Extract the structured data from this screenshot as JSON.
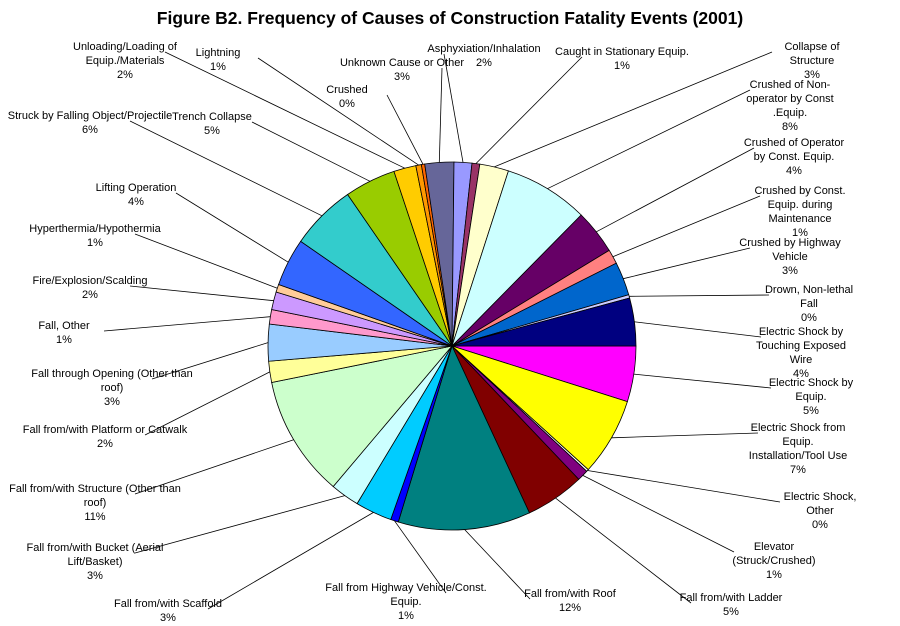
{
  "chart_data": {
    "type": "pie",
    "title": "Figure B2.  Frequency of Causes of Construction Fatality Events (2001)",
    "start_angle_deg": 0,
    "direction": "clockwise",
    "slices": [
      {
        "label": "Electric Shock by Equip.",
        "pct_label": "5%",
        "value": 5.0,
        "color": "#FF00FF"
      },
      {
        "label": "Electric Shock from Equip. Installation/Tool Use",
        "pct_label": "7%",
        "value": 7.0,
        "color": "#FFFF00"
      },
      {
        "label": "Electric Shock, Other",
        "pct_label": "0%",
        "value": 0.2,
        "color": "#FFFFFF"
      },
      {
        "label": "Elevator (Struck/Crushed)",
        "pct_label": "1%",
        "value": 1.0,
        "color": "#800080"
      },
      {
        "label": "Fall from/with Ladder",
        "pct_label": "5%",
        "value": 5.3,
        "color": "#800000"
      },
      {
        "label": "Fall from/with Roof",
        "pct_label": "12%",
        "value": 11.9,
        "color": "#008080"
      },
      {
        "label": "Fall from Highway Vehicle/Const. Equip.",
        "pct_label": "1%",
        "value": 0.7,
        "color": "#0000FF"
      },
      {
        "label": "Fall from/with Scaffold",
        "pct_label": "3%",
        "value": 3.3,
        "color": "#00CCFF"
      },
      {
        "label": "Fall from/with Bucket (Aerial Lift/Basket)",
        "pct_label": "3%",
        "value": 2.6,
        "color": "#CCFFFF"
      },
      {
        "label": "Fall from/with Structure (Other than roof)",
        "pct_label": "11%",
        "value": 10.9,
        "color": "#CCFFCC"
      },
      {
        "label": "Fall from/with Platform or Catwalk",
        "pct_label": "2%",
        "value": 1.9,
        "color": "#FFFF99"
      },
      {
        "label": "Fall through Opening (Other than roof)",
        "pct_label": "3%",
        "value": 3.3,
        "color": "#99CCFF"
      },
      {
        "label": "Fall, Other",
        "pct_label": "1%",
        "value": 1.3,
        "color": "#FF99CC"
      },
      {
        "label": "Fire/Explosion/Scalding",
        "pct_label": "2%",
        "value": 1.6,
        "color": "#CC99FF"
      },
      {
        "label": "Hyperthermia/Hypothermia",
        "pct_label": "1%",
        "value": 0.7,
        "color": "#FFCC99"
      },
      {
        "label": "Lifting Operation",
        "pct_label": "4%",
        "value": 4.3,
        "color": "#3366FF"
      },
      {
        "label": "Struck by Falling Object/Projectile",
        "pct_label": "6%",
        "value": 5.9,
        "color": "#33CCCC"
      },
      {
        "label": "Trench Collapse",
        "pct_label": "5%",
        "value": 4.6,
        "color": "#99CC00"
      },
      {
        "label": "Unloading/Loading of Equip./Materials",
        "pct_label": "2%",
        "value": 2.0,
        "color": "#FFCC00"
      },
      {
        "label": "Lightning",
        "pct_label": "1%",
        "value": 0.5,
        "color": "#FF9900"
      },
      {
        "label": "Crushed",
        "pct_label": "0%",
        "value": 0.3,
        "color": "#FF6600"
      },
      {
        "label": "Unknown Cause or Other",
        "pct_label": "3%",
        "value": 2.6,
        "color": "#666699"
      },
      {
        "label": "Asphyxiation/Inhalation",
        "pct_label": "2%",
        "value": 1.6,
        "color": "#9999FF"
      },
      {
        "label": "Caught in Stationary Equip.",
        "pct_label": "1%",
        "value": 0.7,
        "color": "#993366"
      },
      {
        "label": "Collapse of Structure",
        "pct_label": "3%",
        "value": 2.6,
        "color": "#FFFFCC"
      },
      {
        "label": "Crushed of Non-operator by Const .Equip.",
        "pct_label": "8%",
        "value": 7.6,
        "color": "#CCFFFF"
      },
      {
        "label": "Crushed of Operator by Const. Equip.",
        "pct_label": "4%",
        "value": 4.0,
        "color": "#660066"
      },
      {
        "label": "Crushed by Const. Equip. during Maintenance",
        "pct_label": "1%",
        "value": 1.3,
        "color": "#FF8080"
      },
      {
        "label": "Crushed by Highway Vehicle",
        "pct_label": "3%",
        "value": 3.0,
        "color": "#0066CC"
      },
      {
        "label": "Drown, Non-lethal Fall",
        "pct_label": "0%",
        "value": 0.3,
        "color": "#CCCCFF"
      },
      {
        "label": "Electric Shock by Touching Exposed Wire",
        "pct_label": "4%",
        "value": 4.3,
        "color": "#000080"
      }
    ]
  }
}
